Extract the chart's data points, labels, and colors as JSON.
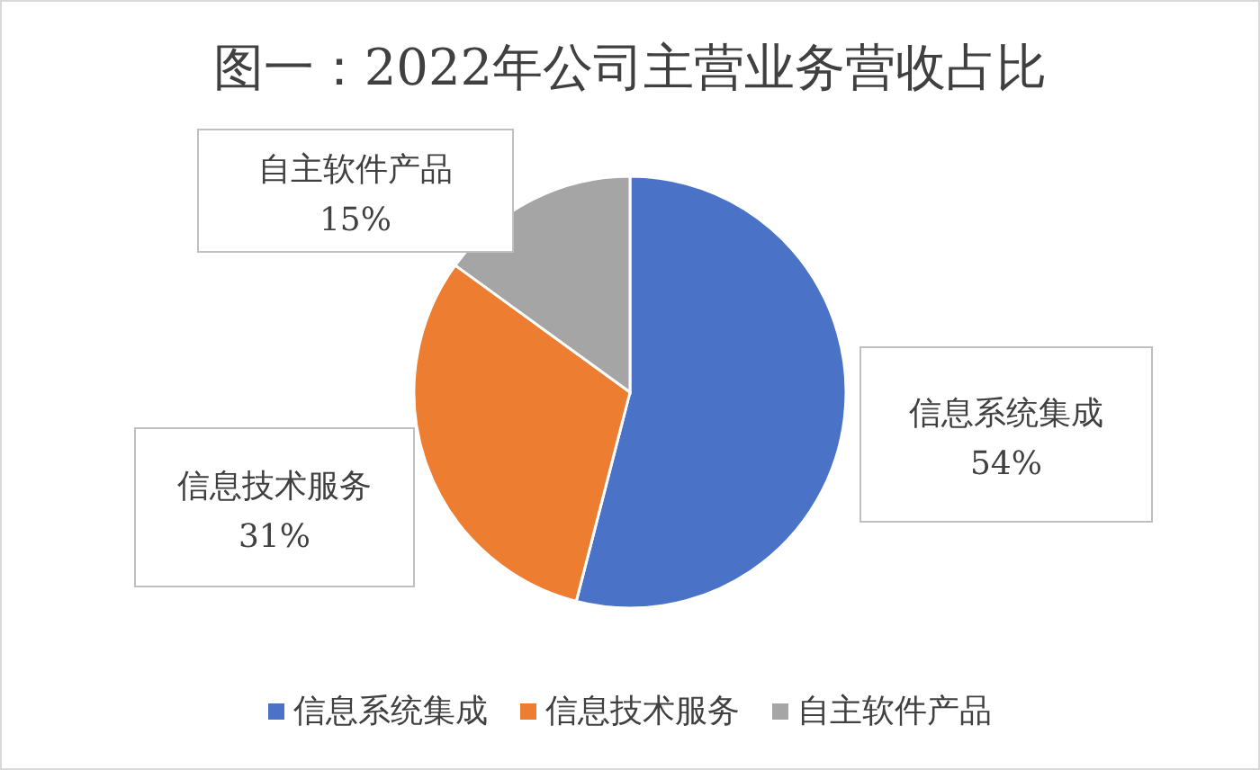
{
  "chart_data": {
    "type": "pie",
    "title": "图一：2022年公司主营业务营收占比",
    "categories": [
      "信息系统集成",
      "信息技术服务",
      "自主软件产品"
    ],
    "values": [
      54,
      31,
      15
    ],
    "value_labels": [
      "54%",
      "31%",
      "15%"
    ],
    "colors": [
      "#4a72c6",
      "#ed7d31",
      "#a5a5a5"
    ],
    "legend": "bottom"
  }
}
